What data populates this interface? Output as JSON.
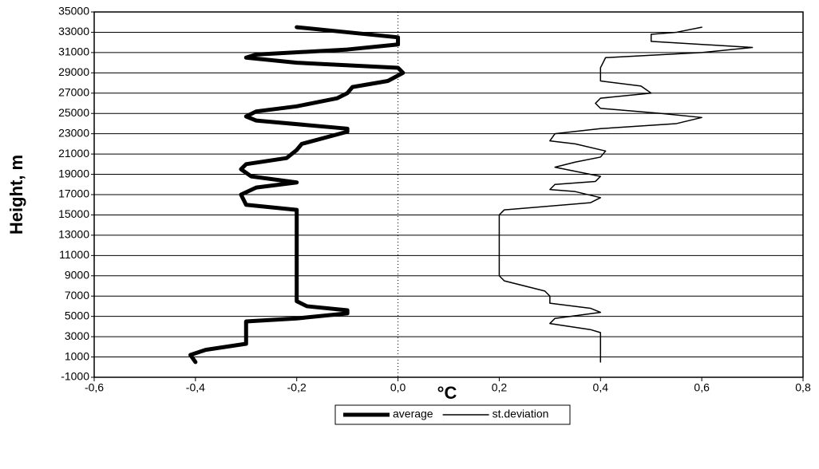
{
  "chart_data": {
    "type": "line",
    "xlabel": "°C",
    "ylabel": "Height, m",
    "xlim": [
      -0.6,
      0.8
    ],
    "ylim": [
      -1000,
      35000
    ],
    "xticks": [
      {
        "value": -0.6,
        "label": "-0,6"
      },
      {
        "value": -0.4,
        "label": "-0,4"
      },
      {
        "value": -0.2,
        "label": "-0,2"
      },
      {
        "value": 0,
        "label": "0,0"
      },
      {
        "value": 0.2,
        "label": "0,2"
      },
      {
        "value": 0.4,
        "label": "0,4"
      },
      {
        "value": 0.6,
        "label": "0,6"
      },
      {
        "value": 0.8,
        "label": "0,8"
      }
    ],
    "yticks": [
      -1000,
      1000,
      3000,
      5000,
      7000,
      9000,
      11000,
      13000,
      15000,
      17000,
      19000,
      21000,
      23000,
      25000,
      27000,
      29000,
      31000,
      33000,
      35000
    ],
    "grid": true,
    "legend": "bottom",
    "series": [
      {
        "name": "average",
        "color": "#000000",
        "width": 5,
        "x": [
          -0.4,
          -0.41,
          -0.38,
          -0.3,
          -0.3,
          -0.3,
          -0.2,
          -0.1,
          -0.1,
          -0.18,
          -0.2,
          -0.2,
          -0.2,
          -0.2,
          -0.3,
          -0.31,
          -0.28,
          -0.2,
          -0.29,
          -0.31,
          -0.3,
          -0.22,
          -0.2,
          -0.19,
          -0.1,
          -0.1,
          -0.28,
          -0.3,
          -0.28,
          -0.2,
          -0.12,
          -0.1,
          -0.09,
          -0.02,
          0.01,
          0.0,
          -0.2,
          -0.3,
          -0.28,
          -0.1,
          0.0,
          0.0,
          -0.1,
          -0.2
        ],
        "values": [
          500,
          1200,
          1700,
          2300,
          3500,
          4500,
          4800,
          5300,
          5600,
          6000,
          6500,
          7000,
          15000,
          15500,
          16000,
          17000,
          17700,
          18200,
          18800,
          19500,
          20000,
          20600,
          21400,
          22000,
          23200,
          23500,
          24300,
          24700,
          25200,
          25700,
          26500,
          27000,
          27600,
          28200,
          29000,
          29500,
          30000,
          30500,
          30800,
          31300,
          31800,
          32500,
          33000,
          33500
        ]
      },
      {
        "name": "st.deviation",
        "color": "#000000",
        "width": 1.5,
        "x": [
          0.4,
          0.4,
          0.38,
          0.3,
          0.31,
          0.4,
          0.38,
          0.3,
          0.3,
          0.29,
          0.21,
          0.2,
          0.2,
          0.21,
          0.38,
          0.4,
          0.35,
          0.3,
          0.31,
          0.39,
          0.4,
          0.35,
          0.31,
          0.35,
          0.4,
          0.41,
          0.35,
          0.3,
          0.31,
          0.4,
          0.55,
          0.6,
          0.52,
          0.4,
          0.39,
          0.4,
          0.5,
          0.48,
          0.4,
          0.4,
          0.41,
          0.6,
          0.7,
          0.5,
          0.5,
          0.55,
          0.6
        ],
        "values": [
          500,
          3400,
          3700,
          4300,
          4800,
          5400,
          5800,
          6300,
          7000,
          7500,
          8500,
          9000,
          15000,
          15500,
          16200,
          16700,
          17300,
          17500,
          18000,
          18300,
          18800,
          19300,
          19700,
          20200,
          20700,
          21300,
          22000,
          22300,
          23000,
          23500,
          24000,
          24600,
          25000,
          25500,
          26000,
          26500,
          27000,
          27700,
          28200,
          29500,
          30500,
          31000,
          31500,
          32100,
          32800,
          33000,
          33500
        ]
      }
    ]
  }
}
